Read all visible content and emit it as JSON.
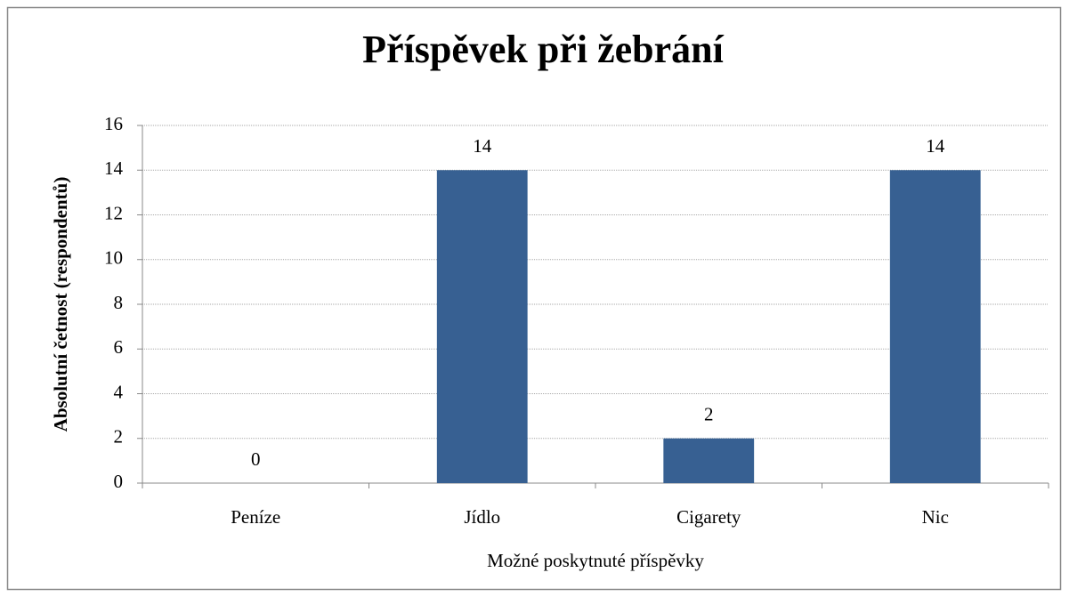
{
  "chart_data": {
    "type": "bar",
    "title": "Příspěvek při žebrání",
    "x_label": "Možné poskytnuté příspěvky",
    "y_label": "Absolutní četnost (respondentů)",
    "categories": [
      "Peníze",
      "Jídlo",
      "Cigarety",
      "Nic"
    ],
    "values": [
      0,
      14,
      2,
      14
    ],
    "color": "#376092",
    "ylim": [
      0,
      16
    ],
    "yticks": [
      0,
      2,
      4,
      6,
      8,
      10,
      12,
      14,
      16
    ],
    "grid": true
  }
}
